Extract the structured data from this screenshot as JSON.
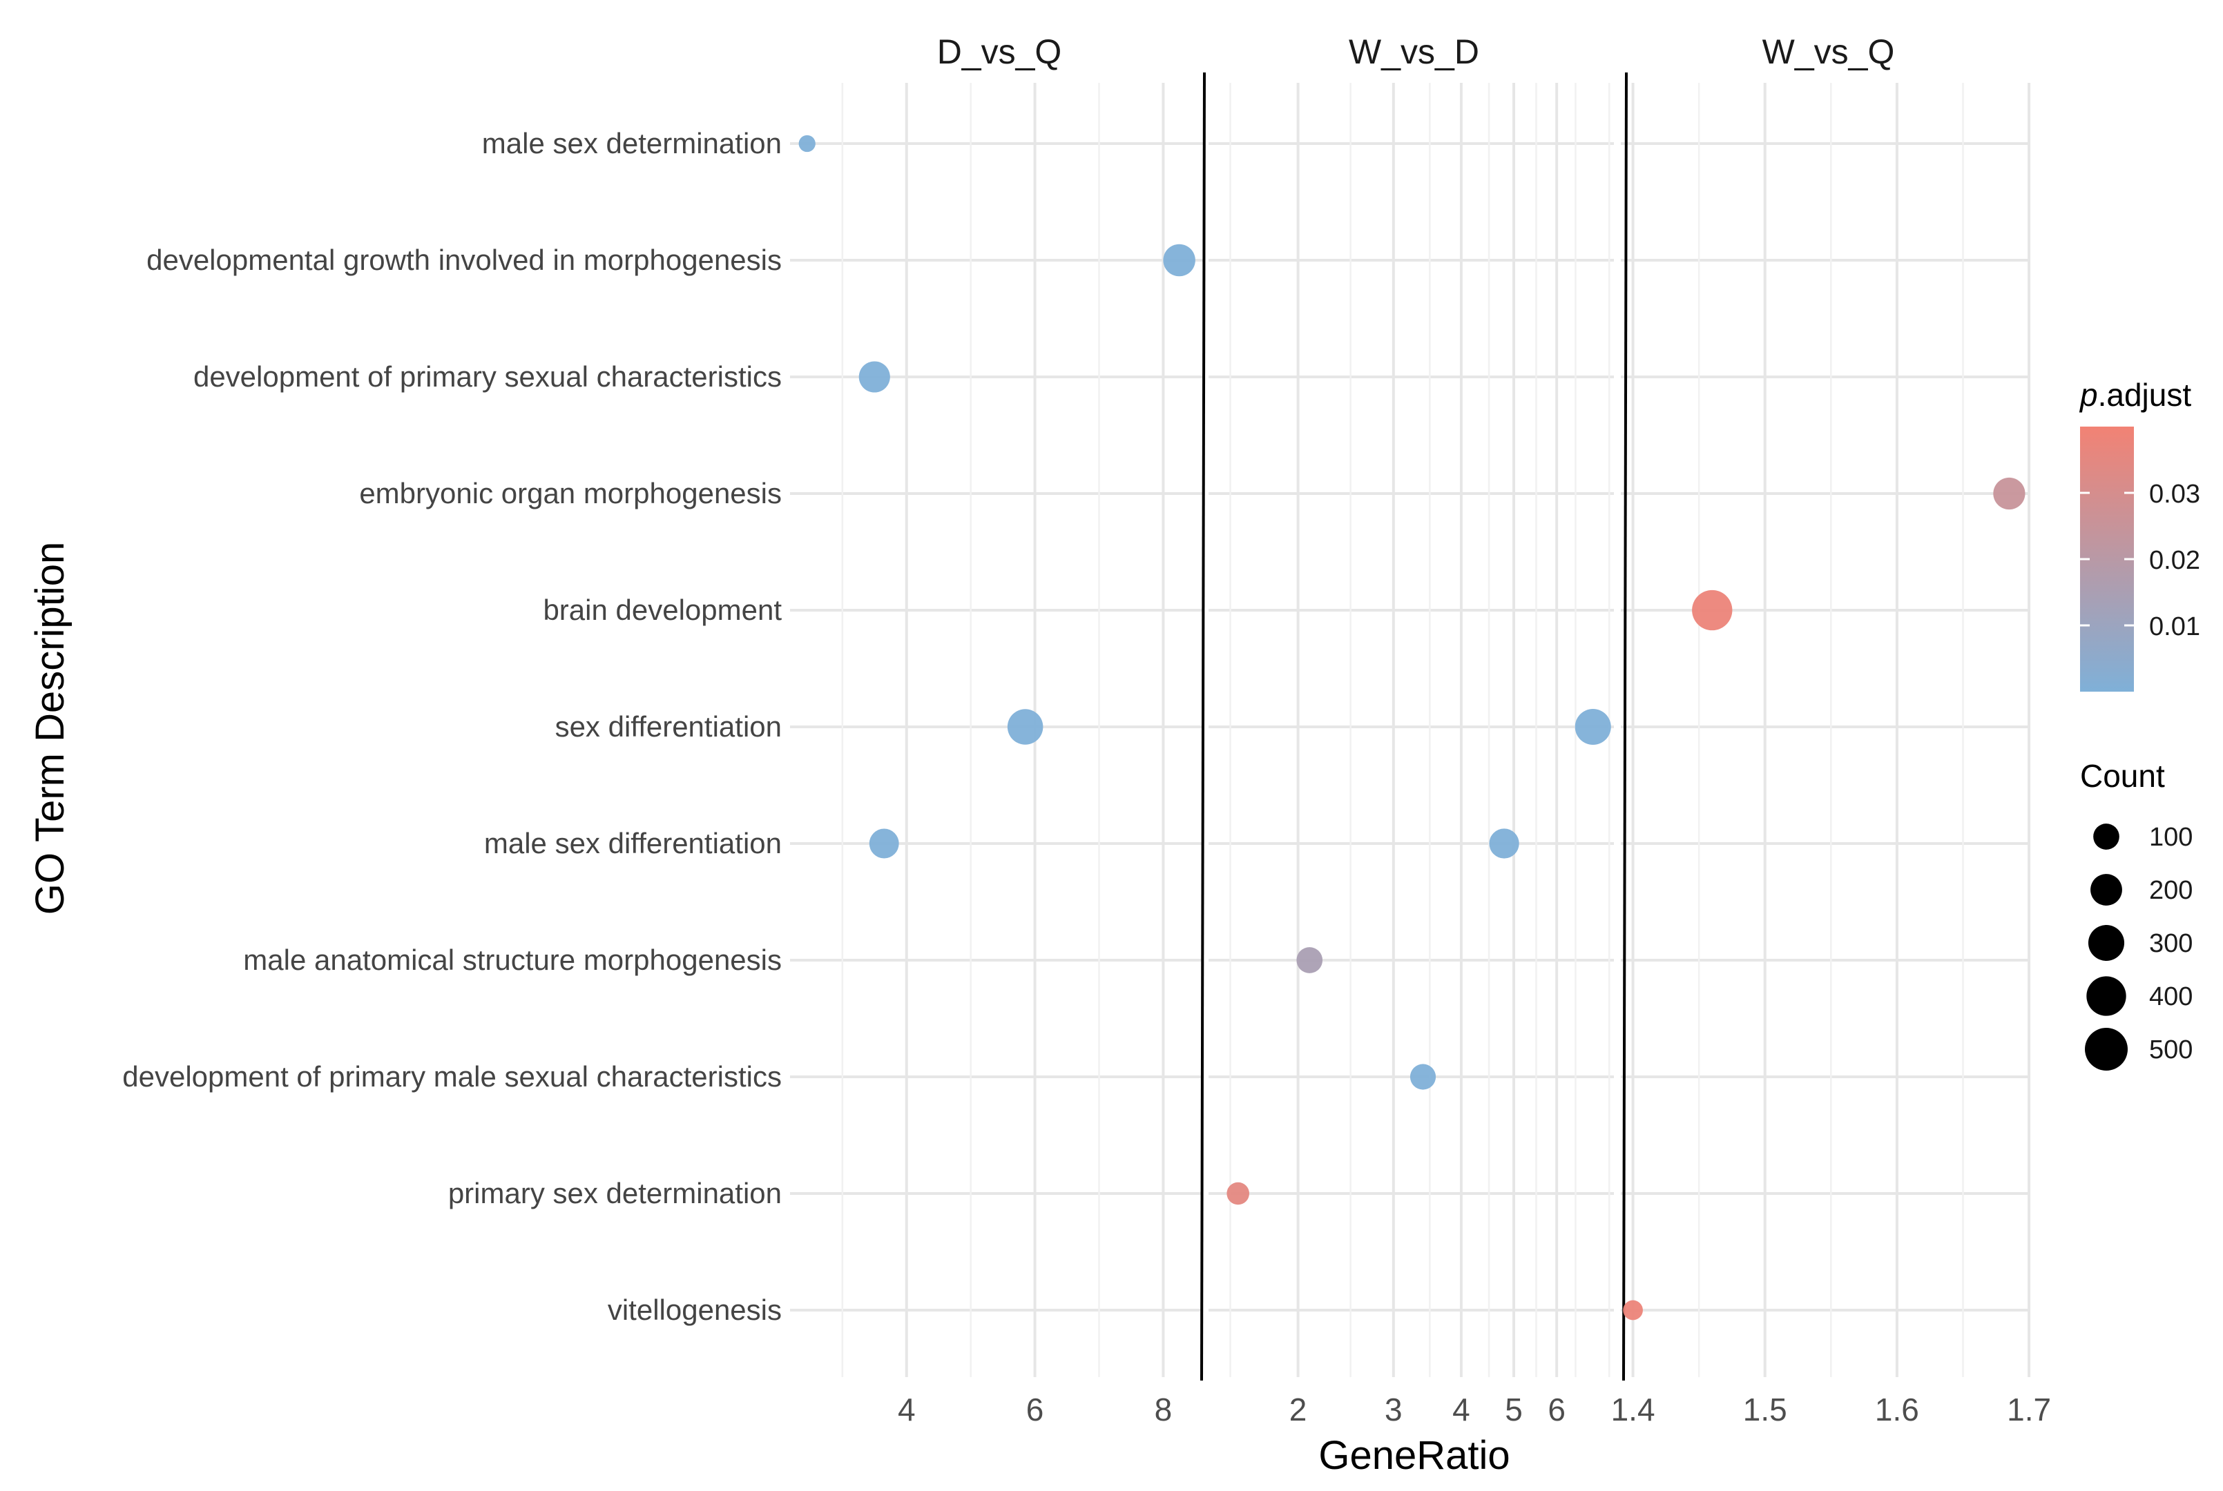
{
  "chart_data": {
    "type": "scatter",
    "subtype": "faceted dot plot",
    "title": "",
    "xlabel": "GeneRatio",
    "ylabel": "GO Term Description",
    "categories": [
      "male sex determination",
      "developmental growth involved in morphogenesis",
      "development of primary sexual characteristics",
      "embryonic organ morphogenesis",
      "brain development",
      "sex differentiation",
      "male sex differentiation",
      "male anatomical structure morphogenesis",
      "development of primary male sexual characteristics",
      "primary sex determination",
      "vitellogenesis"
    ],
    "panels": [
      {
        "name": "D_vs_Q",
        "ticks": [
          4,
          6,
          8
        ],
        "tick_labels": [
          "4",
          "6",
          "8"
        ],
        "points": [
          {
            "term": "male sex determination",
            "x": 2.45,
            "count": 10,
            "p_adjust": 0.0
          },
          {
            "term": "developmental growth involved in morphogenesis",
            "x": 8.25,
            "count": 210,
            "p_adjust": 0.0
          },
          {
            "term": "development of primary sexual characteristics",
            "x": 3.5,
            "count": 190,
            "p_adjust": 0.0
          },
          {
            "term": "sex differentiation",
            "x": 5.85,
            "count": 290,
            "p_adjust": 0.0
          },
          {
            "term": "male sex differentiation",
            "x": 3.65,
            "count": 160,
            "p_adjust": 0.0
          }
        ]
      },
      {
        "name": "W_vs_D",
        "ticks": [
          2,
          3,
          4,
          5,
          6
        ],
        "tick_labels": [
          "2",
          "3",
          "4",
          "5",
          "6"
        ],
        "points": [
          {
            "term": "sex differentiation",
            "x": 7.0,
            "count": 300,
            "p_adjust": 0.0
          },
          {
            "term": "male sex differentiation",
            "x": 4.8,
            "count": 165,
            "p_adjust": 0.0
          },
          {
            "term": "male anatomical structure morphogenesis",
            "x": 2.1,
            "count": 100,
            "p_adjust": 0.015
          },
          {
            "term": "development of primary male sexual characteristics",
            "x": 3.4,
            "count": 95,
            "p_adjust": 0.0
          },
          {
            "term": "primary sex determination",
            "x": 1.55,
            "count": 55,
            "p_adjust": 0.035
          }
        ]
      },
      {
        "name": "W_vs_Q",
        "ticks": [
          1.4,
          1.5,
          1.6,
          1.7
        ],
        "tick_labels": [
          "1.4",
          "1.5",
          "1.6",
          "1.7"
        ],
        "points": [
          {
            "term": "embryonic organ morphogenesis",
            "x": 1.685,
            "count": 205,
            "p_adjust": 0.025
          },
          {
            "term": "brain development",
            "x": 1.46,
            "count": 420,
            "p_adjust": 0.038
          },
          {
            "term": "vitellogenesis",
            "x": 1.4,
            "count": 30,
            "p_adjust": 0.038
          }
        ]
      }
    ],
    "color_legend": {
      "title_italic": "p",
      "title_rest": ".adjust",
      "ticks": [
        0.01,
        0.02,
        0.03
      ],
      "tick_labels": [
        "0.01",
        "0.02",
        "0.03"
      ],
      "range": [
        0.0,
        0.04
      ],
      "low_color": "#7fb0d8",
      "high_color": "#f28274"
    },
    "size_legend": {
      "title": "Count",
      "values": [
        100,
        200,
        300,
        400,
        500
      ],
      "labels": [
        "100",
        "200",
        "300",
        "400",
        "500"
      ]
    }
  }
}
